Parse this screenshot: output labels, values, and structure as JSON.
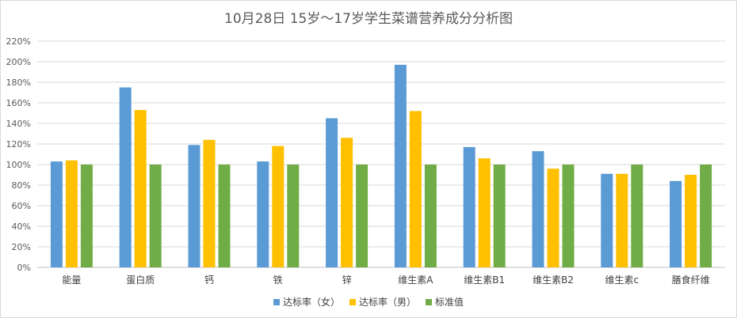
{
  "chart_data": {
    "type": "bar",
    "title": "10月28日 15岁～17岁学生菜谱营养成分分析图",
    "categories": [
      "能量",
      "蛋白质",
      "钙",
      "铁",
      "锌",
      "维生素A",
      "维生素B1",
      "维生素B2",
      "维生素c",
      "膳食纤维"
    ],
    "series": [
      {
        "name": "达标率（女）",
        "color": "#5b9bd5",
        "values": [
          103,
          175,
          119,
          103,
          145,
          197,
          117,
          113,
          91,
          84
        ]
      },
      {
        "name": "达标率（男）",
        "color": "#ffc000",
        "values": [
          104,
          153,
          124,
          118,
          126,
          152,
          106,
          96,
          91,
          90
        ]
      },
      {
        "name": "标准值",
        "color": "#70ad47",
        "values": [
          100,
          100,
          100,
          100,
          100,
          100,
          100,
          100,
          100,
          100
        ]
      }
    ],
    "ylim": [
      0,
      220
    ],
    "yticks": [
      0,
      20,
      40,
      60,
      80,
      100,
      120,
      140,
      160,
      180,
      200,
      220
    ],
    "ytick_labels": [
      "0%",
      "20%",
      "40%",
      "60%",
      "80%",
      "100%",
      "120%",
      "140%",
      "160%",
      "180%",
      "200%",
      "220%"
    ],
    "grid": true,
    "legend_position": "bottom"
  }
}
